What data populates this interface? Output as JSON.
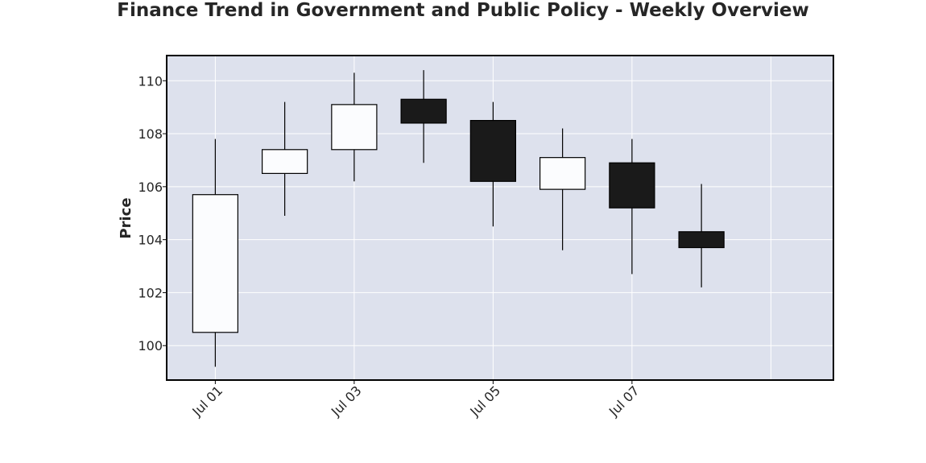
{
  "chart_data": {
    "type": "candlestick",
    "title": "Finance Trend in Government and Public Policy - Weekly Overview",
    "xlabel": "",
    "ylabel": "Price",
    "x_tick_labels": [
      "Jul 01",
      "Jul 03",
      "Jul 05",
      "Jul 07"
    ],
    "y_tick_labels": [
      "100",
      "102",
      "104",
      "106",
      "108",
      "110"
    ],
    "ylim": [
      98.7,
      110.95
    ],
    "xlim_days": [
      -0.7,
      8.9
    ],
    "grid": true,
    "colors": {
      "plot_background": "#dde1ed",
      "grid": "#ffffff",
      "up_body": "#fbfcfe",
      "down_body": "#1a1a1a",
      "wick": "#000000"
    },
    "candles": [
      {
        "date": "Jul 01",
        "open": 100.5,
        "high": 107.8,
        "low": 99.2,
        "close": 105.7
      },
      {
        "date": "Jul 02",
        "open": 106.5,
        "high": 109.2,
        "low": 104.9,
        "close": 107.4
      },
      {
        "date": "Jul 03",
        "open": 107.4,
        "high": 110.3,
        "low": 106.2,
        "close": 109.1
      },
      {
        "date": "Jul 04",
        "open": 109.3,
        "high": 110.4,
        "low": 106.9,
        "close": 108.4
      },
      {
        "date": "Jul 05",
        "open": 108.5,
        "high": 109.2,
        "low": 104.5,
        "close": 106.2
      },
      {
        "date": "Jul 06",
        "open": 105.9,
        "high": 108.2,
        "low": 103.6,
        "close": 107.1
      },
      {
        "date": "Jul 07",
        "open": 106.9,
        "high": 107.8,
        "low": 102.7,
        "close": 105.2
      },
      {
        "date": "Jul 08",
        "open": 104.3,
        "high": 106.1,
        "low": 102.2,
        "close": 103.7
      }
    ]
  }
}
